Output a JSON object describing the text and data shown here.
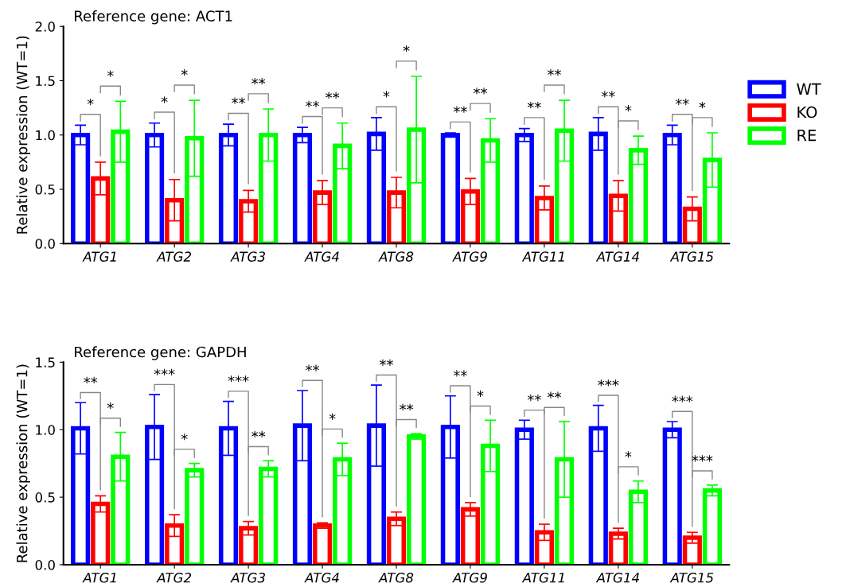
{
  "chart_data": [
    {
      "type": "bar",
      "title": "Reference gene: ACT1",
      "ylabel": "Relative expression (WT=1)",
      "categories": [
        "ATG1",
        "ATG2",
        "ATG3",
        "ATG4",
        "ATG8",
        "ATG9",
        "ATG11",
        "ATG14",
        "ATG15"
      ],
      "series": [
        {
          "name": "WT",
          "color": "#0000ff",
          "values": [
            1.0,
            1.0,
            1.0,
            1.0,
            1.01,
            1.0,
            1.0,
            1.01,
            1.0
          ],
          "errors": [
            0.09,
            0.11,
            0.1,
            0.07,
            0.15,
            0.02,
            0.06,
            0.15,
            0.09
          ]
        },
        {
          "name": "KO",
          "color": "#ff0000",
          "values": [
            0.6,
            0.4,
            0.39,
            0.47,
            0.47,
            0.48,
            0.42,
            0.44,
            0.32
          ],
          "errors": [
            0.15,
            0.19,
            0.1,
            0.11,
            0.14,
            0.12,
            0.11,
            0.14,
            0.11
          ]
        },
        {
          "name": "RE",
          "color": "#00ff00",
          "values": [
            1.03,
            0.97,
            1.0,
            0.9,
            1.05,
            0.95,
            1.04,
            0.86,
            0.77
          ],
          "errors": [
            0.28,
            0.35,
            0.24,
            0.21,
            0.49,
            0.2,
            0.28,
            0.13,
            0.25
          ]
        }
      ],
      "ylim": [
        0,
        2.0
      ],
      "yticks": [
        {
          "value": 0,
          "label": "0.0"
        },
        {
          "value": 0.5,
          "label": "0.5"
        },
        {
          "value": 1.0,
          "label": "1.0"
        },
        {
          "value": 1.5,
          "label": "1.5"
        },
        {
          "value": 2.0,
          "label": "2.0"
        }
      ],
      "grid": false,
      "legend": "right",
      "annotations": [
        "*",
        "*",
        "*",
        "*",
        "**",
        "**",
        "**",
        "**",
        "*",
        "*",
        "**",
        "**",
        "**",
        "**",
        "**",
        "*",
        "**",
        "*"
      ]
    },
    {
      "type": "bar",
      "title": "Reference gene: GAPDH",
      "ylabel": "Relative expression (WT=1)",
      "categories": [
        "ATG1",
        "ATG2",
        "ATG3",
        "ATG4",
        "ATG8",
        "ATG9",
        "ATG11",
        "ATG14",
        "ATG15"
      ],
      "series": [
        {
          "color": "#0000ff",
          "values": [
            1.01,
            1.02,
            1.01,
            1.03,
            1.03,
            1.02,
            1.0,
            1.01,
            1.0
          ],
          "errors": [
            0.19,
            0.24,
            0.2,
            0.26,
            0.3,
            0.23,
            0.07,
            0.17,
            0.06
          ]
        },
        {
          "color": "#ff0000",
          "values": [
            0.45,
            0.29,
            0.27,
            0.29,
            0.34,
            0.41,
            0.24,
            0.23,
            0.2
          ],
          "errors": [
            0.06,
            0.08,
            0.05,
            0.02,
            0.05,
            0.05,
            0.06,
            0.04,
            0.04
          ]
        },
        {
          "color": "#00ff00",
          "values": [
            0.8,
            0.7,
            0.71,
            0.78,
            0.95,
            0.88,
            0.78,
            0.54,
            0.55
          ],
          "errors": [
            0.18,
            0.05,
            0.06,
            0.12,
            0.02,
            0.19,
            0.28,
            0.08,
            0.04
          ]
        }
      ],
      "ylim": [
        0,
        1.5
      ],
      "yticks": [
        {
          "value": 0,
          "label": "0.0"
        },
        {
          "value": 0.5,
          "label": "0.5"
        },
        {
          "value": 1.0,
          "label": "1.0"
        },
        {
          "value": 1.5,
          "label": "1.5"
        }
      ],
      "grid": false,
      "legend": false,
      "annotations": [
        "**",
        "*",
        "***",
        "*",
        "***",
        "**",
        "**",
        "*",
        "**",
        "**",
        "**",
        "*",
        "**",
        "**",
        "***",
        "*",
        "***",
        "***"
      ]
    }
  ]
}
